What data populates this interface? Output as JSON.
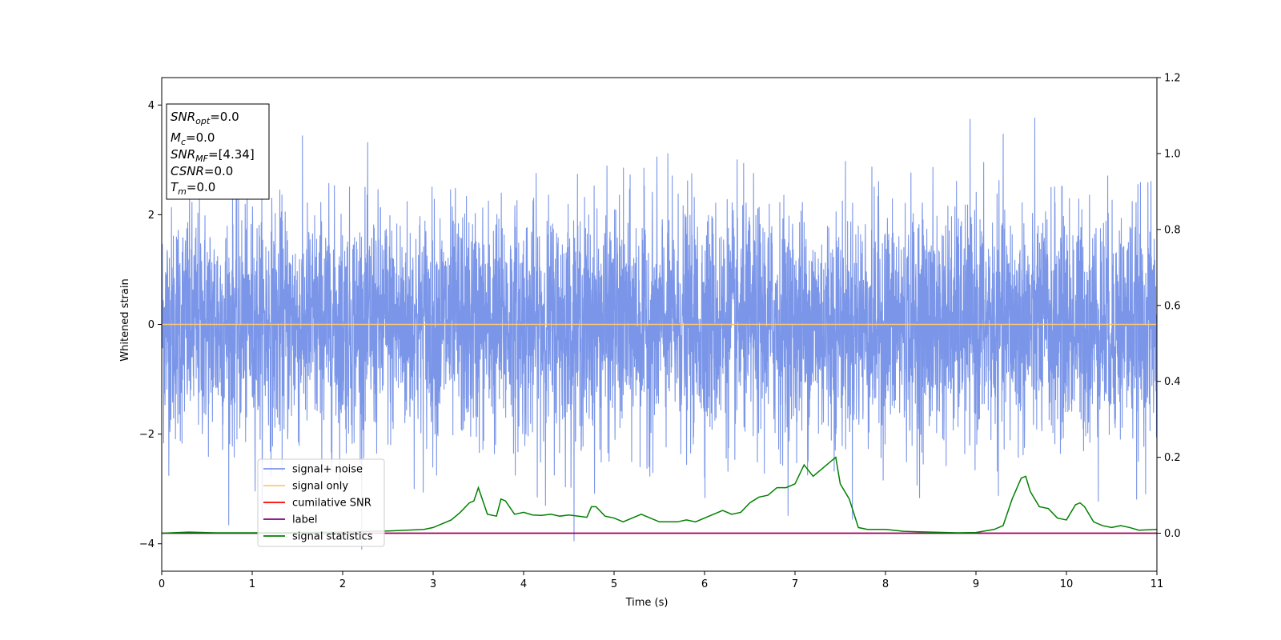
{
  "chart_data": {
    "type": "line",
    "xlabel": "Time (s)",
    "ylabel": "Whitened strain",
    "xlim": [
      0,
      11
    ],
    "ylim_left": [
      -4.5,
      4.5
    ],
    "ylim_right": [
      -0.1,
      1.2
    ],
    "x_ticks": [
      "0",
      "1",
      "2",
      "3",
      "4",
      "5",
      "6",
      "7",
      "8",
      "9",
      "10",
      "11"
    ],
    "y_left_ticks": [
      "4",
      "2",
      "0",
      "−2",
      "−4"
    ],
    "y_right_ticks": [
      "1.2",
      "1.0",
      "0.8",
      "0.6",
      "0.4",
      "0.2",
      "0.0"
    ],
    "grid": false,
    "legend_location": "lower-left",
    "series": [
      {
        "name": "signal+ noise",
        "axis": "left",
        "color": "#7b96e8",
        "kind": "noise",
        "approx_std": 1.05,
        "approx_range": [
          -4.1,
          4.2
        ]
      },
      {
        "name": "signal only",
        "axis": "left",
        "color": "#ffc970",
        "x": [
          0,
          11
        ],
        "y": [
          0,
          0
        ]
      },
      {
        "name": "cumilative SNR",
        "axis": "right",
        "color": "#ff0000",
        "x": [
          0,
          11
        ],
        "y": [
          0,
          0
        ]
      },
      {
        "name": "label",
        "axis": "right",
        "color": "#800080",
        "x": [
          0,
          11
        ],
        "y": [
          0,
          0
        ]
      },
      {
        "name": "signal statistics",
        "axis": "right",
        "color": "#008000",
        "x": [
          0,
          0.3,
          0.6,
          1.0,
          1.5,
          2.0,
          2.3,
          2.5,
          2.7,
          2.9,
          3.0,
          3.1,
          3.2,
          3.3,
          3.4,
          3.45,
          3.5,
          3.6,
          3.7,
          3.75,
          3.8,
          3.9,
          4.0,
          4.1,
          4.2,
          4.3,
          4.4,
          4.5,
          4.6,
          4.7,
          4.75,
          4.8,
          4.9,
          5.0,
          5.1,
          5.3,
          5.5,
          5.7,
          5.8,
          5.9,
          6.0,
          6.1,
          6.2,
          6.3,
          6.4,
          6.5,
          6.6,
          6.7,
          6.8,
          6.9,
          7.0,
          7.1,
          7.2,
          7.3,
          7.4,
          7.45,
          7.5,
          7.6,
          7.7,
          7.8,
          8.0,
          8.2,
          8.5,
          8.8,
          9.0,
          9.2,
          9.3,
          9.4,
          9.5,
          9.55,
          9.6,
          9.7,
          9.8,
          9.9,
          10.0,
          10.1,
          10.15,
          10.2,
          10.3,
          10.4,
          10.5,
          10.6,
          10.7,
          10.8,
          11.0
        ],
        "y": [
          0.0,
          0.003,
          0.001,
          0.001,
          0.002,
          0.003,
          0.005,
          0.006,
          0.008,
          0.01,
          0.015,
          0.025,
          0.035,
          0.055,
          0.08,
          0.085,
          0.12,
          0.05,
          0.045,
          0.09,
          0.085,
          0.05,
          0.055,
          0.048,
          0.047,
          0.05,
          0.045,
          0.048,
          0.045,
          0.042,
          0.07,
          0.07,
          0.045,
          0.04,
          0.03,
          0.05,
          0.03,
          0.03,
          0.035,
          0.03,
          0.04,
          0.05,
          0.06,
          0.05,
          0.055,
          0.08,
          0.095,
          0.1,
          0.12,
          0.12,
          0.13,
          0.18,
          0.15,
          0.17,
          0.19,
          0.2,
          0.13,
          0.09,
          0.015,
          0.01,
          0.01,
          0.005,
          0.003,
          0.001,
          0.002,
          0.01,
          0.02,
          0.09,
          0.145,
          0.15,
          0.11,
          0.07,
          0.065,
          0.04,
          0.035,
          0.075,
          0.08,
          0.07,
          0.03,
          0.02,
          0.015,
          0.02,
          0.015,
          0.008,
          0.01
        ]
      }
    ]
  },
  "info_box": {
    "lines": [
      {
        "var": "SNR",
        "sub": "opt",
        "value": "=0.0"
      },
      {
        "var": "M",
        "sub": "c",
        "value": "=0.0"
      },
      {
        "var": "SNR",
        "sub": "MF",
        "value": "=[4.34]"
      },
      {
        "var": "CSNR",
        "sub": "",
        "value": "=0.0"
      },
      {
        "var": "T",
        "sub": "m",
        "value": "=0.0"
      }
    ]
  }
}
